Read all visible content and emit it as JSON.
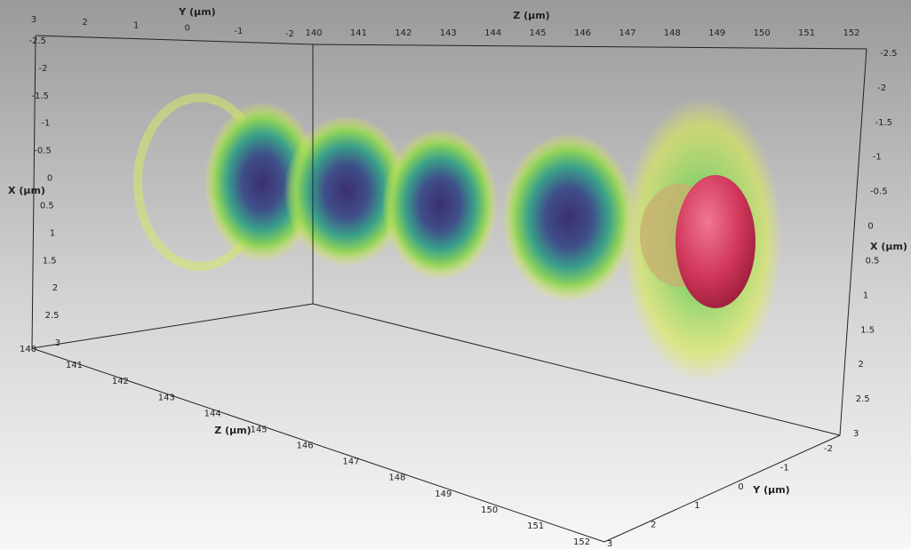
{
  "axes": [
    {
      "label": "Y (µm)",
      "ticks": [
        3,
        2,
        1,
        0,
        -1,
        -2
      ]
    },
    {
      "label": "Z (µm)",
      "ticks": [
        140,
        141,
        142,
        143,
        144,
        145,
        146,
        147,
        148,
        149,
        150,
        151,
        152
      ]
    },
    {
      "label": "X (µm)",
      "ticks": [
        -2.5,
        -2,
        -1.5,
        -1,
        -0.5,
        0,
        0.5,
        1,
        1.5,
        2,
        2.5,
        3
      ]
    },
    {
      "label": "X (µm)",
      "ticks": [
        -2.5,
        -2,
        -1.5,
        -1,
        -0.5,
        0,
        0.5,
        1,
        1.5,
        2,
        2.5,
        3
      ]
    },
    {
      "label": "Z (µm)",
      "ticks": [
        140,
        141,
        142,
        143,
        144,
        145,
        146,
        147,
        148,
        149,
        150,
        151,
        152
      ]
    },
    {
      "label": "Y (µm)",
      "ticks": [
        -2,
        -1,
        0,
        1,
        2,
        3
      ]
    }
  ]
}
